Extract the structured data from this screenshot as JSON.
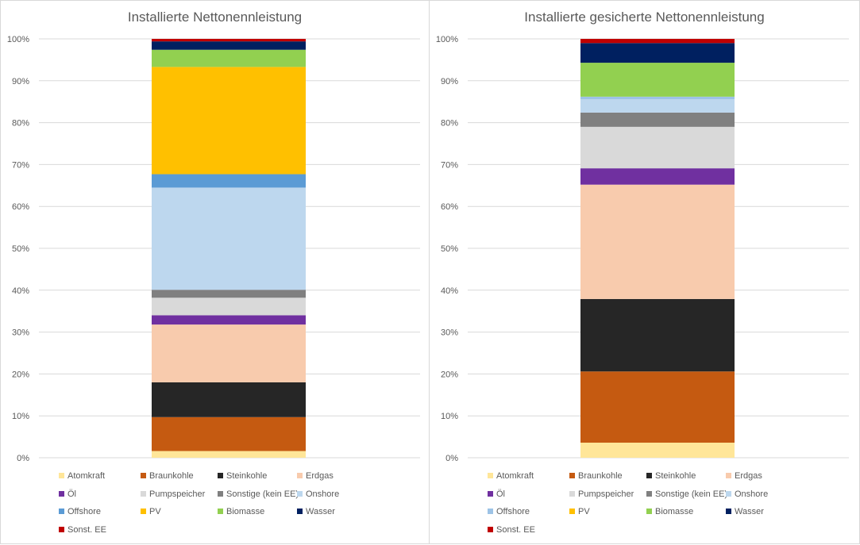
{
  "chart_data": [
    {
      "type": "bar",
      "stacked": true,
      "title": "Installierte Nettonennleistung",
      "ylim": [
        0,
        100
      ],
      "yticks": [
        "0%",
        "10%",
        "20%",
        "30%",
        "40%",
        "50%",
        "60%",
        "70%",
        "80%",
        "90%",
        "100%"
      ],
      "grid": true,
      "legend_position": "bottom",
      "series": [
        {
          "name": "Atomkraft",
          "color": "#ffe699",
          "value": 1.6
        },
        {
          "name": "Braunkohle",
          "color": "#c55a11",
          "value": 8.1
        },
        {
          "name": "Steinkohle",
          "color": "#262626",
          "value": 8.3
        },
        {
          "name": "Erdgas",
          "color": "#f8cbad",
          "value": 13.8
        },
        {
          "name": "Öl",
          "color": "#7030a0",
          "value": 2.2
        },
        {
          "name": "Pumpspeicher",
          "color": "#d9d9d9",
          "value": 4.2
        },
        {
          "name": "Sonstige (kein EE)",
          "color": "#808080",
          "value": 1.9
        },
        {
          "name": "Onshore",
          "color": "#bdd7ee",
          "value": 24.4
        },
        {
          "name": "Offshore",
          "color": "#5b9bd5",
          "value": 3.2
        },
        {
          "name": "PV",
          "color": "#ffc000",
          "value": 25.6
        },
        {
          "name": "Biomasse",
          "color": "#92d050",
          "value": 4.1
        },
        {
          "name": "Wasser",
          "color": "#002060",
          "value": 2.0
        },
        {
          "name": "Sonst. EE",
          "color": "#c00000",
          "value": 0.6
        }
      ]
    },
    {
      "type": "bar",
      "stacked": true,
      "title": "Installierte gesicherte Nettonennleistung",
      "ylim": [
        0,
        100
      ],
      "yticks": [
        "0%",
        "10%",
        "20%",
        "30%",
        "40%",
        "50%",
        "60%",
        "70%",
        "80%",
        "90%",
        "100%"
      ],
      "grid": true,
      "legend_position": "bottom",
      "series": [
        {
          "name": "Atomkraft",
          "color": "#ffe699",
          "value": 3.6
        },
        {
          "name": "Braunkohle",
          "color": "#c55a11",
          "value": 17.0
        },
        {
          "name": "Steinkohle",
          "color": "#262626",
          "value": 17.3
        },
        {
          "name": "Erdgas",
          "color": "#f8cbad",
          "value": 27.3
        },
        {
          "name": "Öl",
          "color": "#7030a0",
          "value": 3.9
        },
        {
          "name": "Pumpspeicher",
          "color": "#d9d9d9",
          "value": 9.9
        },
        {
          "name": "Sonstige (kein EE)",
          "color": "#808080",
          "value": 3.4
        },
        {
          "name": "Onshore",
          "color": "#bdd7ee",
          "value": 3.2
        },
        {
          "name": "Offshore",
          "color": "#9dc3e6",
          "value": 0.6
        },
        {
          "name": "PV",
          "color": "#ffc000",
          "value": 0.0
        },
        {
          "name": "Biomasse",
          "color": "#92d050",
          "value": 8.1
        },
        {
          "name": "Wasser",
          "color": "#002060",
          "value": 4.7
        },
        {
          "name": "Sonst. EE",
          "color": "#c00000",
          "value": 1.0
        }
      ]
    }
  ]
}
